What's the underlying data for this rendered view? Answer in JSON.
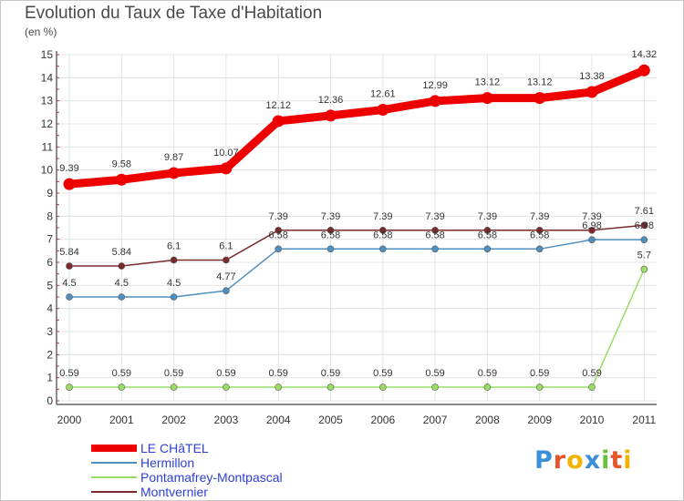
{
  "chart_data": {
    "type": "line",
    "title": "Evolution du Taux de Taxe d'Habitation",
    "subtitle": "(en %)",
    "x": [
      "2000",
      "2001",
      "2002",
      "2003",
      "2004",
      "2005",
      "2006",
      "2007",
      "2008",
      "2009",
      "2010",
      "2011"
    ],
    "ylim": [
      0,
      15
    ],
    "yticks": [
      0,
      1,
      2,
      3,
      4,
      5,
      6,
      7,
      8,
      9,
      10,
      11,
      12,
      13,
      14,
      15
    ],
    "grid": true,
    "legend_position": "bottom-left",
    "series": [
      {
        "name": "LE CHâTEL",
        "color": "#ee0000",
        "values": [
          9.39,
          9.58,
          9.87,
          10.07,
          12.12,
          12.36,
          12.61,
          12.99,
          13.12,
          13.12,
          13.38,
          14.32
        ],
        "labels": [
          "9.39",
          "9.58",
          "9.87",
          "10.07",
          "12.12",
          "12.36",
          "12.61",
          "12.99",
          "13.12",
          "13.12",
          "13.38",
          "14.32"
        ]
      },
      {
        "name": "Hermillon",
        "color": "#4f8fc0",
        "values": [
          4.5,
          4.5,
          4.5,
          4.77,
          6.58,
          6.58,
          6.58,
          6.58,
          6.58,
          6.58,
          6.98,
          6.98
        ],
        "labels": [
          "4.5",
          "4.5",
          "4.5",
          "4.77",
          "6.58",
          "6.58",
          "6.58",
          "6.58",
          "6.58",
          "6.58",
          "6.98",
          "6.98"
        ]
      },
      {
        "name": "Pontamafrey-Montpascal",
        "color": "#99dd66",
        "values": [
          0.59,
          0.59,
          0.59,
          0.59,
          0.59,
          0.59,
          0.59,
          0.59,
          0.59,
          0.59,
          0.59,
          5.7
        ],
        "labels": [
          "0.59",
          "0.59",
          "0.59",
          "0.59",
          "0.59",
          "0.59",
          "0.59",
          "0.59",
          "0.59",
          "0.59",
          "0.59",
          "5.7"
        ]
      },
      {
        "name": "Montvernier",
        "color": "#7a2a2a",
        "values": [
          5.84,
          5.84,
          6.1,
          6.1,
          7.39,
          7.39,
          7.39,
          7.39,
          7.39,
          7.39,
          7.39,
          7.61
        ],
        "labels": [
          "5.84",
          "5.84",
          "6.1",
          "6.1",
          "7.39",
          "7.39",
          "7.39",
          "7.39",
          "7.39",
          "7.39",
          "7.39",
          "7.61"
        ]
      }
    ]
  },
  "logo": {
    "text": "Proxiti",
    "letters": [
      "P",
      "r",
      "o",
      "x",
      "i",
      "t",
      "i"
    ],
    "colors": [
      "#3a8fd8",
      "#e8552a",
      "#f0b400",
      "#3a8fd8",
      "#6cbf3a",
      "#e8552a",
      "#f0b400"
    ]
  }
}
